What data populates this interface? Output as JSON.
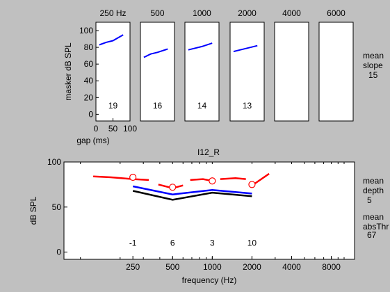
{
  "chart_data": [
    {
      "type": "line",
      "ylabel": "masker dB SPL",
      "xlabel": "gap (ms)",
      "x_ticks": [
        0,
        50,
        100
      ],
      "x_tick_labels": [
        "0",
        "50",
        "100"
      ],
      "xlim": [
        0,
        100
      ],
      "y_ticks": [
        0,
        20,
        40,
        60,
        80,
        100
      ],
      "y_tick_labels": [
        "0",
        "20",
        "40",
        "60",
        "80",
        "100"
      ],
      "ylim": [
        -8,
        110
      ],
      "panels": [
        {
          "title": "250 Hz",
          "x": [
            10,
            30,
            50,
            80
          ],
          "y": [
            83,
            86,
            88,
            95
          ],
          "slope_label": "19"
        },
        {
          "title": "500",
          "x": [
            10,
            30,
            50,
            80
          ],
          "y": [
            68,
            72,
            74,
            78
          ],
          "slope_label": "16"
        },
        {
          "title": "1000",
          "x": [
            10,
            30,
            50,
            80
          ],
          "y": [
            77,
            79,
            81,
            85
          ],
          "slope_label": "14"
        },
        {
          "title": "2000",
          "x": [
            10,
            30,
            50,
            80
          ],
          "y": [
            75,
            77,
            79,
            82
          ],
          "slope_label": "13"
        },
        {
          "title": "4000",
          "x": [],
          "y": [],
          "slope_label": ""
        },
        {
          "title": "6000",
          "x": [],
          "y": [],
          "slope_label": ""
        }
      ],
      "side_label": {
        "line1": "mean",
        "line2": "slope",
        "value": "15"
      }
    },
    {
      "type": "line",
      "title": "I12_R",
      "xlabel": "frequency (Hz)",
      "ylabel": "dB SPL",
      "xscale": "log",
      "xlim": [
        75,
        12000
      ],
      "ylim": [
        -8,
        100
      ],
      "x_ticks": [
        250,
        500,
        1000,
        2000,
        4000,
        8000
      ],
      "x_tick_labels": [
        "250",
        "500",
        "1000",
        "2000",
        "4000",
        "8000"
      ],
      "y_ticks": [
        0,
        50,
        100
      ],
      "y_tick_labels": [
        "0",
        "50",
        "100"
      ],
      "series": [
        {
          "color": "#ff0000",
          "segments": [
            {
              "x": [
                125,
                170,
                250,
                330
              ],
              "y": [
                84,
                83,
                81,
                80
              ]
            },
            {
              "x": [
                390,
                500,
                600
              ],
              "y": [
                75,
                71,
                74
              ]
            },
            {
              "x": [
                680,
                850,
                1000
              ],
              "y": [
                80,
                81,
                79
              ]
            },
            {
              "x": [
                1150,
                1500,
                1800
              ],
              "y": [
                81,
                82,
                81
              ]
            },
            {
              "x": [
                2100,
                2700
              ],
              "y": [
                76,
                87
              ]
            }
          ],
          "markers": {
            "x": [
              250,
              500,
              1000,
              2000
            ],
            "y": [
              83,
              72,
              79,
              75
            ]
          }
        },
        {
          "color": "#0000ff",
          "x": [
            250,
            500,
            1000,
            2000
          ],
          "y": [
            73,
            64,
            69,
            65
          ]
        },
        {
          "color": "#000000",
          "x": [
            250,
            500,
            1000,
            2000
          ],
          "y": [
            68,
            58,
            66,
            62
          ]
        }
      ],
      "annotations": [
        {
          "x": 250,
          "text": "-1"
        },
        {
          "x": 500,
          "text": "6"
        },
        {
          "x": 1000,
          "text": "3"
        },
        {
          "x": 2000,
          "text": "10"
        }
      ],
      "annotation_y": 10,
      "side_labels": [
        {
          "line1": "mean",
          "line2": "depth",
          "value": "5"
        },
        {
          "line1": "mean",
          "line2": "absThr",
          "value": "67"
        }
      ]
    }
  ]
}
